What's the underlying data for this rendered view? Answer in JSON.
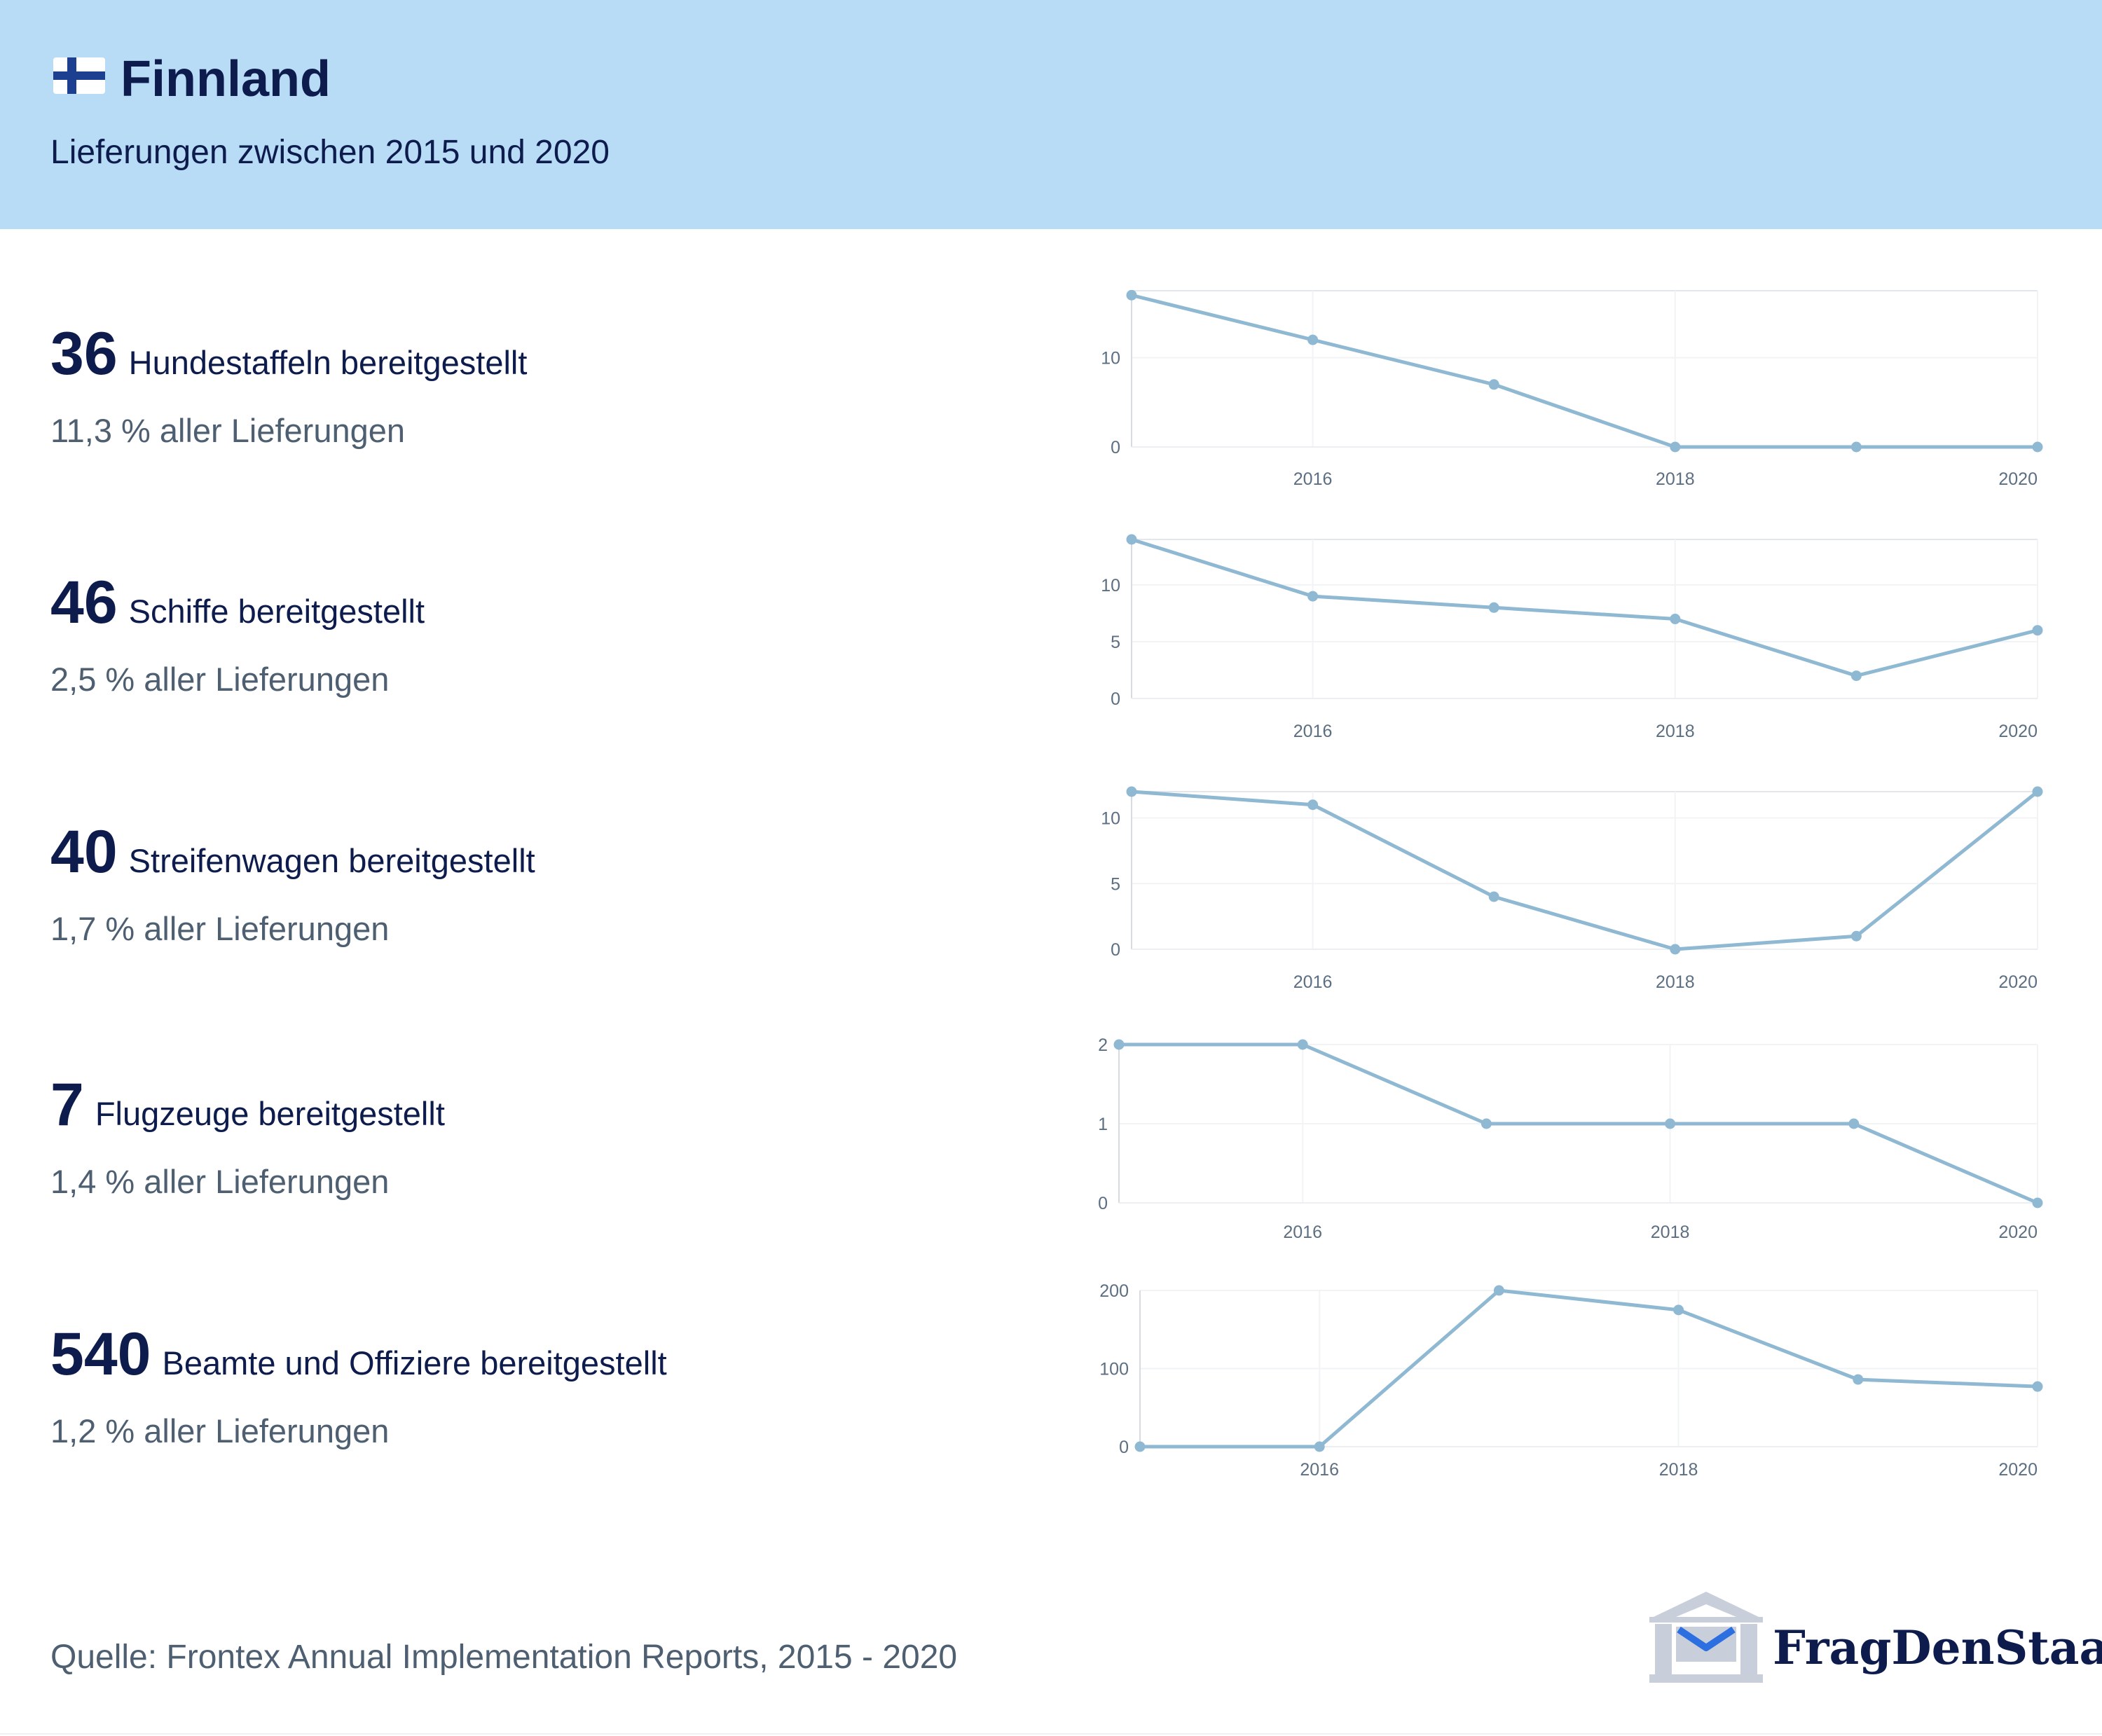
{
  "header": {
    "flag_icon": "finland-flag-icon",
    "title": "Finnland",
    "subtitle": "Lieferungen zwischen 2015 und 2020",
    "background": "#b8dcf5"
  },
  "stats": [
    {
      "number": "36",
      "label": "Hundestaffeln bereitgestellt",
      "share": "11,3 % aller Lieferungen"
    },
    {
      "number": "46",
      "label": "Schiffe bereitgestellt",
      "share": "2,5 % aller Lieferungen"
    },
    {
      "number": "40",
      "label": "Streifenwagen bereitgestellt",
      "share": "1,7 % aller Lieferungen"
    },
    {
      "number": "7",
      "label": "Flugzeuge bereitgestellt",
      "share": "1,4 % aller Lieferungen"
    },
    {
      "number": "540",
      "label": "Beamte und Offiziere bereitgestellt",
      "share": "1,2 % aller Lieferungen"
    }
  ],
  "chart_data": [
    {
      "type": "line",
      "x": [
        2015,
        2016,
        2017,
        2018,
        2019,
        2020
      ],
      "xticks": [
        "2016",
        "2018",
        "2020"
      ],
      "series": [
        {
          "values": [
            17,
            12,
            7,
            0,
            0,
            0
          ]
        }
      ],
      "ylim": [
        0,
        17.5
      ],
      "yticks": [
        0,
        10
      ],
      "grid": true,
      "color": "#8fb8d2"
    },
    {
      "type": "line",
      "x": [
        2015,
        2016,
        2017,
        2018,
        2019,
        2020
      ],
      "xticks": [
        "2016",
        "2018",
        "2020"
      ],
      "series": [
        {
          "values": [
            14,
            9,
            8,
            7,
            2,
            6
          ]
        }
      ],
      "ylim": [
        0,
        14
      ],
      "yticks": [
        0,
        5,
        10
      ],
      "grid": true,
      "color": "#8fb8d2"
    },
    {
      "type": "line",
      "x": [
        2015,
        2016,
        2017,
        2018,
        2019,
        2020
      ],
      "xticks": [
        "2016",
        "2018",
        "2020"
      ],
      "series": [
        {
          "values": [
            12,
            11,
            4,
            0,
            1,
            12
          ]
        }
      ],
      "ylim": [
        0,
        12
      ],
      "yticks": [
        0,
        5,
        10
      ],
      "grid": true,
      "color": "#8fb8d2"
    },
    {
      "type": "line",
      "x": [
        2015,
        2016,
        2017,
        2018,
        2019,
        2020
      ],
      "xticks": [
        "2016",
        "2018",
        "2020"
      ],
      "series": [
        {
          "values": [
            2,
            2,
            1,
            1,
            1,
            0
          ]
        }
      ],
      "ylim": [
        0,
        2
      ],
      "yticks": [
        0,
        1,
        2
      ],
      "grid": true,
      "color": "#8fb8d2"
    },
    {
      "type": "line",
      "x": [
        2015,
        2016,
        2017,
        2018,
        2019,
        2020
      ],
      "xticks": [
        "2016",
        "2018",
        "2020"
      ],
      "series": [
        {
          "values": [
            0,
            0,
            200,
            175,
            86,
            77
          ]
        }
      ],
      "ylim": [
        0,
        200
      ],
      "yticks": [
        0,
        100,
        200
      ],
      "grid": true,
      "color": "#8fb8d2"
    }
  ],
  "footer": {
    "source": "Quelle: Frontex Annual Implementation Reports, 2015 - 2020",
    "logo_icon": "fragdenstaat-logo-icon",
    "logo_text": "FragDenStaat"
  }
}
